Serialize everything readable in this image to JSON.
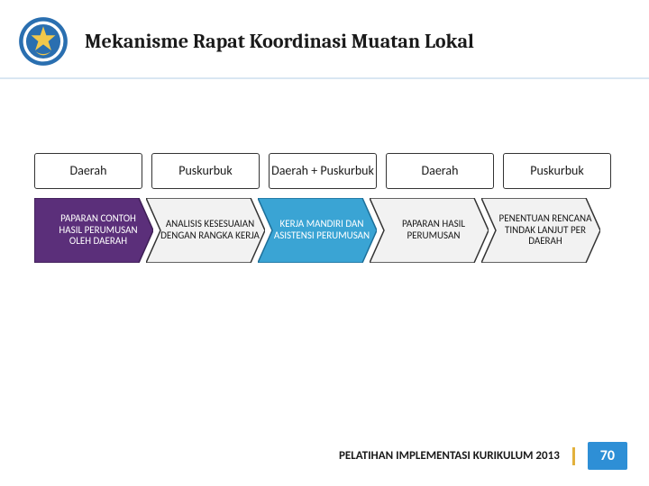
{
  "header": {
    "title": "Mekanisme Rapat Koordinasi Muatan Lokal",
    "logo_outer_color": "#2a6fb0",
    "logo_inner_color": "#f2c84b",
    "logo_ring_color": "#ffffff"
  },
  "labels": [
    {
      "text": "Daerah"
    },
    {
      "text": "Puskurbuk"
    },
    {
      "text": "Daerah + Puskurbuk"
    },
    {
      "text": "Daerah"
    },
    {
      "text": "Puskurbuk"
    }
  ],
  "label_box": {
    "border_color": "#333333",
    "background": "#ffffff",
    "font_size": 14
  },
  "chevrons": [
    {
      "text": "PAPARAN CONTOH HASIL PERUMUSAN OLEH DAERAH",
      "fill": "#5b2f7a",
      "stroke": "#3e1f55",
      "text_color": "#ffffff"
    },
    {
      "text": "ANALISIS KESESUAIAN DENGAN RANGKA KERJA",
      "fill": "#f2f2f2",
      "stroke": "#333333",
      "text_color": "#1a1a1a"
    },
    {
      "text": "KERJA MANDIRI DAN ASISTENSI PERUMUSAN",
      "fill": "#3aa4d4",
      "stroke": "#1d6f99",
      "text_color": "#ffffff"
    },
    {
      "text": "PAPARAN HASIL PERUMUSAN",
      "fill": "#f2f2f2",
      "stroke": "#333333",
      "text_color": "#1a1a1a"
    },
    {
      "text": "PENENTUAN RENCANA TINDAK LANJUT PER DAERAH",
      "fill": "#f2f2f2",
      "stroke": "#333333",
      "text_color": "#1a1a1a"
    }
  ],
  "chevron_style": {
    "width": 132,
    "height": 72,
    "font_size": 11,
    "overlap": 8
  },
  "footer": {
    "text": "PELATIHAN IMPLEMENTASI KURIKULUM 2013",
    "separator_color": "#e2b13c",
    "page_number": "70",
    "page_badge_bg": "#2e8fd6",
    "page_badge_color": "#ffffff"
  },
  "page": {
    "background": "#ffffff",
    "divider_color": "#d9e6f2"
  }
}
